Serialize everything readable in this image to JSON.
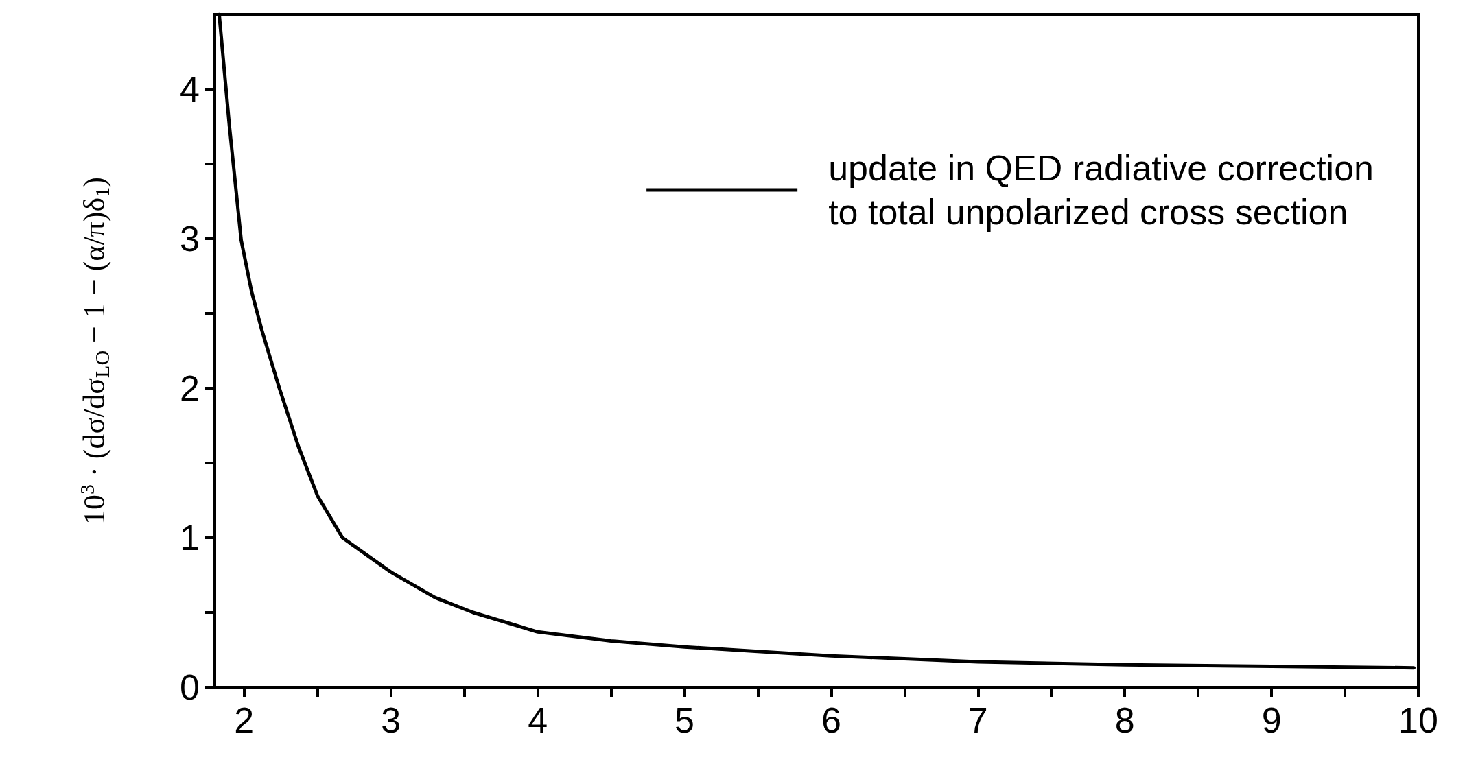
{
  "chart_data": {
    "type": "line",
    "ylabel": "10$^{3}$ · (dσ/dσ$_{LO}$ − 1 − (α/π)δ$_{1}$)",
    "xlim": [
      1.8,
      10
    ],
    "ylim": [
      0,
      4.5
    ],
    "xticks": [
      2,
      {
        "value": 2.5,
        "label": null
      },
      3,
      {
        "value": 3.5,
        "label": null
      },
      4,
      {
        "value": 4.5,
        "label": null
      },
      5,
      {
        "value": 5.5,
        "label": null
      },
      6,
      {
        "value": 6.5,
        "label": null
      },
      7,
      {
        "value": 7.5,
        "label": null
      },
      8,
      {
        "value": 8.5,
        "label": null
      },
      9,
      {
        "value": 9.5,
        "label": null
      },
      10
    ],
    "yticks": [
      0,
      {
        "value": 0.5,
        "label": null
      },
      1,
      {
        "value": 1.5,
        "label": null
      },
      2,
      {
        "value": 2.5,
        "label": null
      },
      3,
      {
        "value": 3.5,
        "label": null
      },
      4
    ],
    "grid": false,
    "legend": "top right",
    "marker": "none",
    "line_style": "solid",
    "series": [
      {
        "name": "update in QED radiative correction\nto total unpolarized cross section",
        "color": "#000000",
        "x": [
          1.83,
          1.9,
          1.98,
          2.05,
          2.12,
          2.24,
          2.37,
          2.5,
          2.67,
          3,
          3.3,
          3.56,
          4,
          4.5,
          5,
          5.5,
          6,
          7,
          8,
          9,
          9.97
        ],
        "values": [
          4.5,
          3.75,
          2.99,
          2.65,
          2.39,
          2.0,
          1.61,
          1.28,
          1.0,
          0.77,
          0.6,
          0.5,
          0.37,
          0.31,
          0.27,
          0.24,
          0.21,
          0.17,
          0.15,
          0.14,
          0.13
        ]
      }
    ]
  }
}
